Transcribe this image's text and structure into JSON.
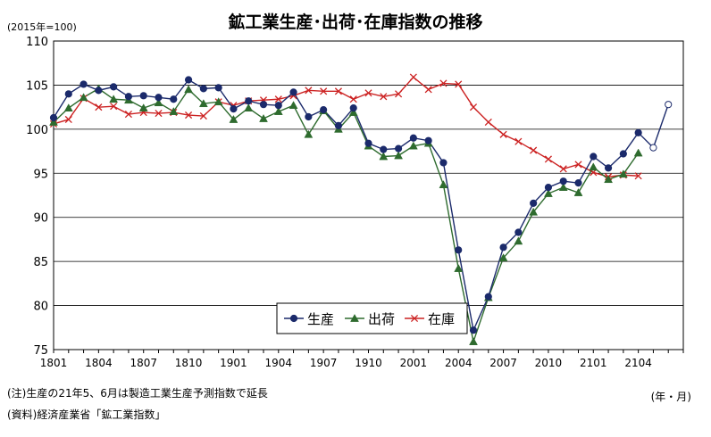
{
  "title": "鉱工業生産･出荷･在庫指数の推移",
  "unit": "(2015年=100)",
  "x_unit": "(年・月)",
  "notes": [
    "(注)生産の21年5、6月は製造工業生産予測指数で延長",
    "(資料)経済産業省「鉱工業指数」"
  ],
  "chart_data": {
    "type": "line",
    "ylim": [
      75,
      110
    ],
    "yticks": [
      75,
      80,
      85,
      90,
      95,
      100,
      105,
      110
    ],
    "x_tick_labels": [
      "1801",
      "1804",
      "1807",
      "1810",
      "1901",
      "1904",
      "1907",
      "1910",
      "2001",
      "2004",
      "2007",
      "2010",
      "2101",
      "2104"
    ],
    "x_tick_every": 3,
    "grid": true,
    "legend_placement": "bottom-center",
    "series": [
      {
        "name": "生産",
        "color": "#1b2a6b",
        "marker": "circle",
        "values": [
          101.3,
          104.0,
          105.1,
          104.4,
          104.8,
          103.7,
          103.8,
          103.6,
          103.4,
          105.6,
          104.6,
          104.7,
          102.3,
          103.2,
          102.8,
          102.7,
          104.2,
          101.4,
          102.2,
          100.4,
          102.4,
          98.4,
          97.7,
          97.8,
          99.0,
          98.7,
          96.2,
          86.3,
          77.2,
          81.0,
          86.6,
          88.3,
          91.6,
          93.4,
          94.1,
          93.9,
          96.9,
          95.6,
          97.2,
          99.6,
          null,
          null
        ],
        "forecast": [
          null,
          null,
          null,
          null,
          null,
          null,
          null,
          null,
          null,
          null,
          null,
          null,
          null,
          null,
          null,
          null,
          null,
          null,
          null,
          null,
          null,
          null,
          null,
          null,
          null,
          null,
          null,
          null,
          null,
          null,
          null,
          null,
          null,
          null,
          null,
          null,
          null,
          null,
          null,
          99.6,
          97.9,
          102.8
        ]
      },
      {
        "name": "出荷",
        "color": "#2e6b2e",
        "marker": "triangle",
        "values": [
          100.8,
          102.4,
          103.6,
          104.6,
          103.4,
          103.3,
          102.4,
          103.0,
          102.0,
          104.5,
          102.9,
          103.1,
          101.1,
          102.4,
          101.2,
          102.0,
          102.7,
          99.4,
          102.1,
          100.0,
          101.9,
          98.1,
          96.9,
          97.0,
          98.1,
          98.4,
          93.7,
          84.2,
          75.9,
          80.9,
          85.4,
          87.3,
          90.6,
          92.7,
          93.4,
          92.8,
          95.7,
          94.3,
          94.9,
          97.3,
          null,
          null
        ]
      },
      {
        "name": "在庫",
        "color": "#cc2222",
        "marker": "x",
        "values": [
          100.6,
          101.1,
          103.5,
          102.5,
          102.6,
          101.7,
          101.9,
          101.8,
          101.9,
          101.6,
          101.5,
          103.1,
          102.7,
          103.2,
          103.3,
          103.4,
          103.8,
          104.4,
          104.3,
          104.3,
          103.4,
          104.1,
          103.7,
          104.0,
          105.9,
          104.5,
          105.2,
          105.1,
          102.5,
          100.8,
          99.4,
          98.6,
          97.6,
          96.6,
          95.5,
          96.0,
          95.1,
          94.6,
          94.8,
          94.7,
          null,
          null
        ]
      }
    ]
  }
}
